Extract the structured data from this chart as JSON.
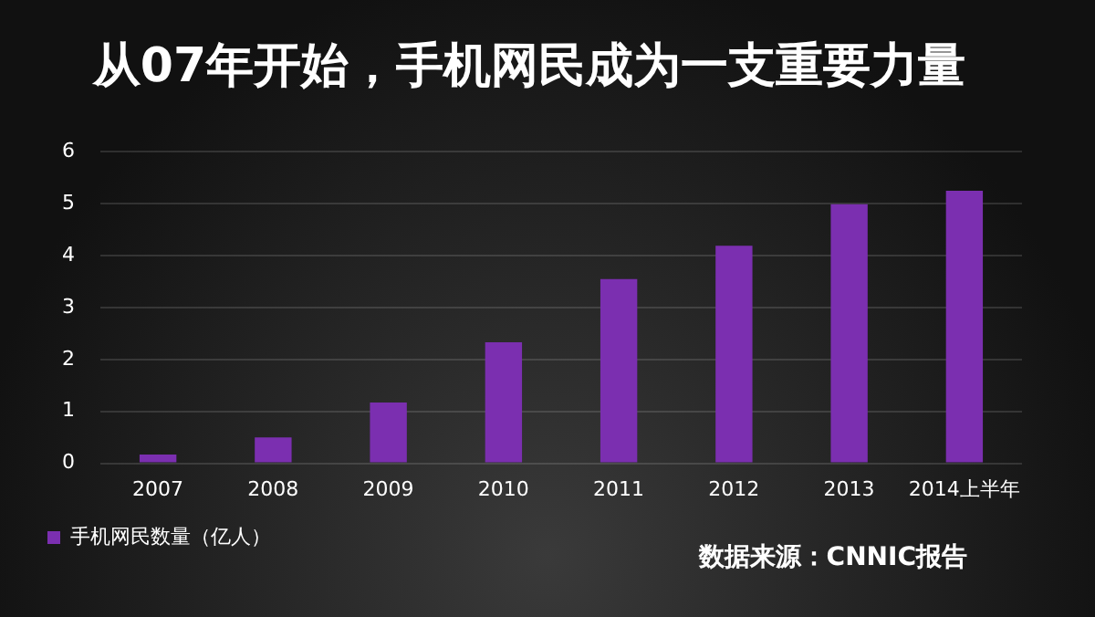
{
  "chart_data": {
    "type": "bar",
    "title": "从07年开始，手机网民成为一支重要力量",
    "categories": [
      "2007",
      "2008",
      "2009",
      "2010",
      "2011",
      "2012",
      "2013",
      "2014上半年"
    ],
    "series": [
      {
        "name": "手机网民数量（亿人）",
        "color": "#7b2fb0",
        "values": [
          0.17,
          0.5,
          1.17,
          2.33,
          3.55,
          4.19,
          4.99,
          5.25
        ]
      }
    ],
    "ylim": [
      0,
      6
    ],
    "yticks": [
      0,
      1,
      2,
      3,
      4,
      5,
      6
    ],
    "grid": "y",
    "legend": "bottom left",
    "annotations": [
      "数据来源：CNNIC报告"
    ]
  }
}
